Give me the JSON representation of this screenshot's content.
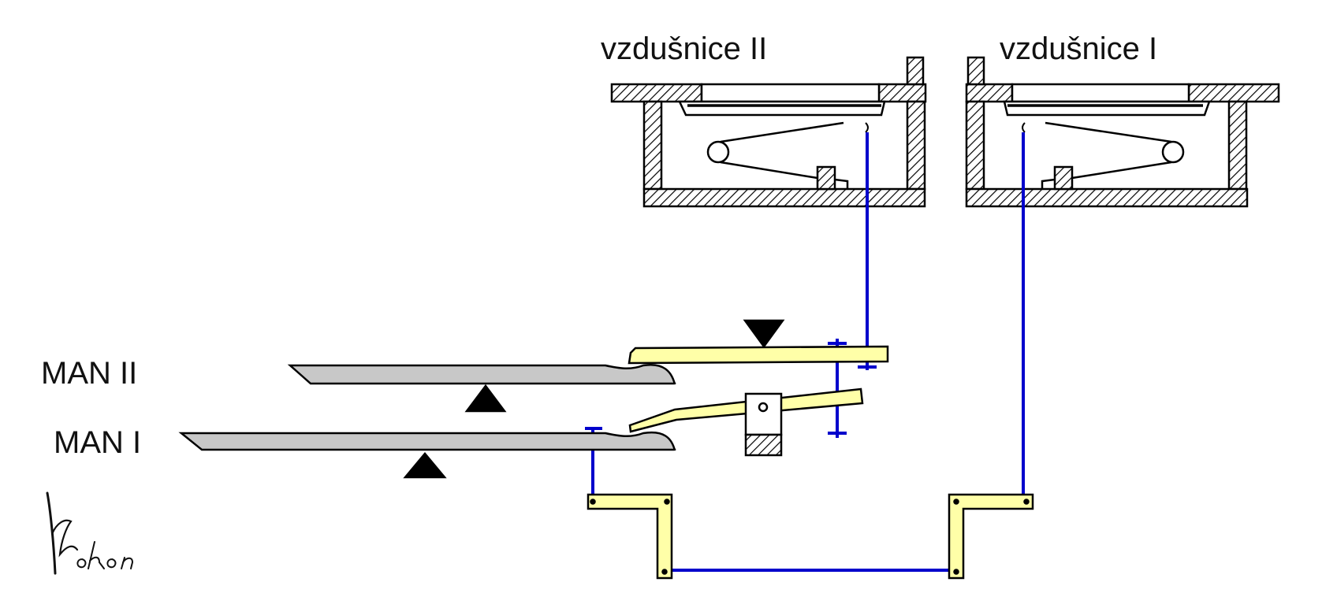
{
  "labels": {
    "chest_2": "vzdušnice II",
    "chest_1": "vzdušnice I",
    "manual_2": "MAN II",
    "manual_1": "MAN I"
  },
  "signature": {
    "text": "Kokon"
  },
  "colors": {
    "tracker": "#0000cc",
    "key": "#c8c8c8",
    "lever": "#ffffa8",
    "stroke": "#000000"
  }
}
